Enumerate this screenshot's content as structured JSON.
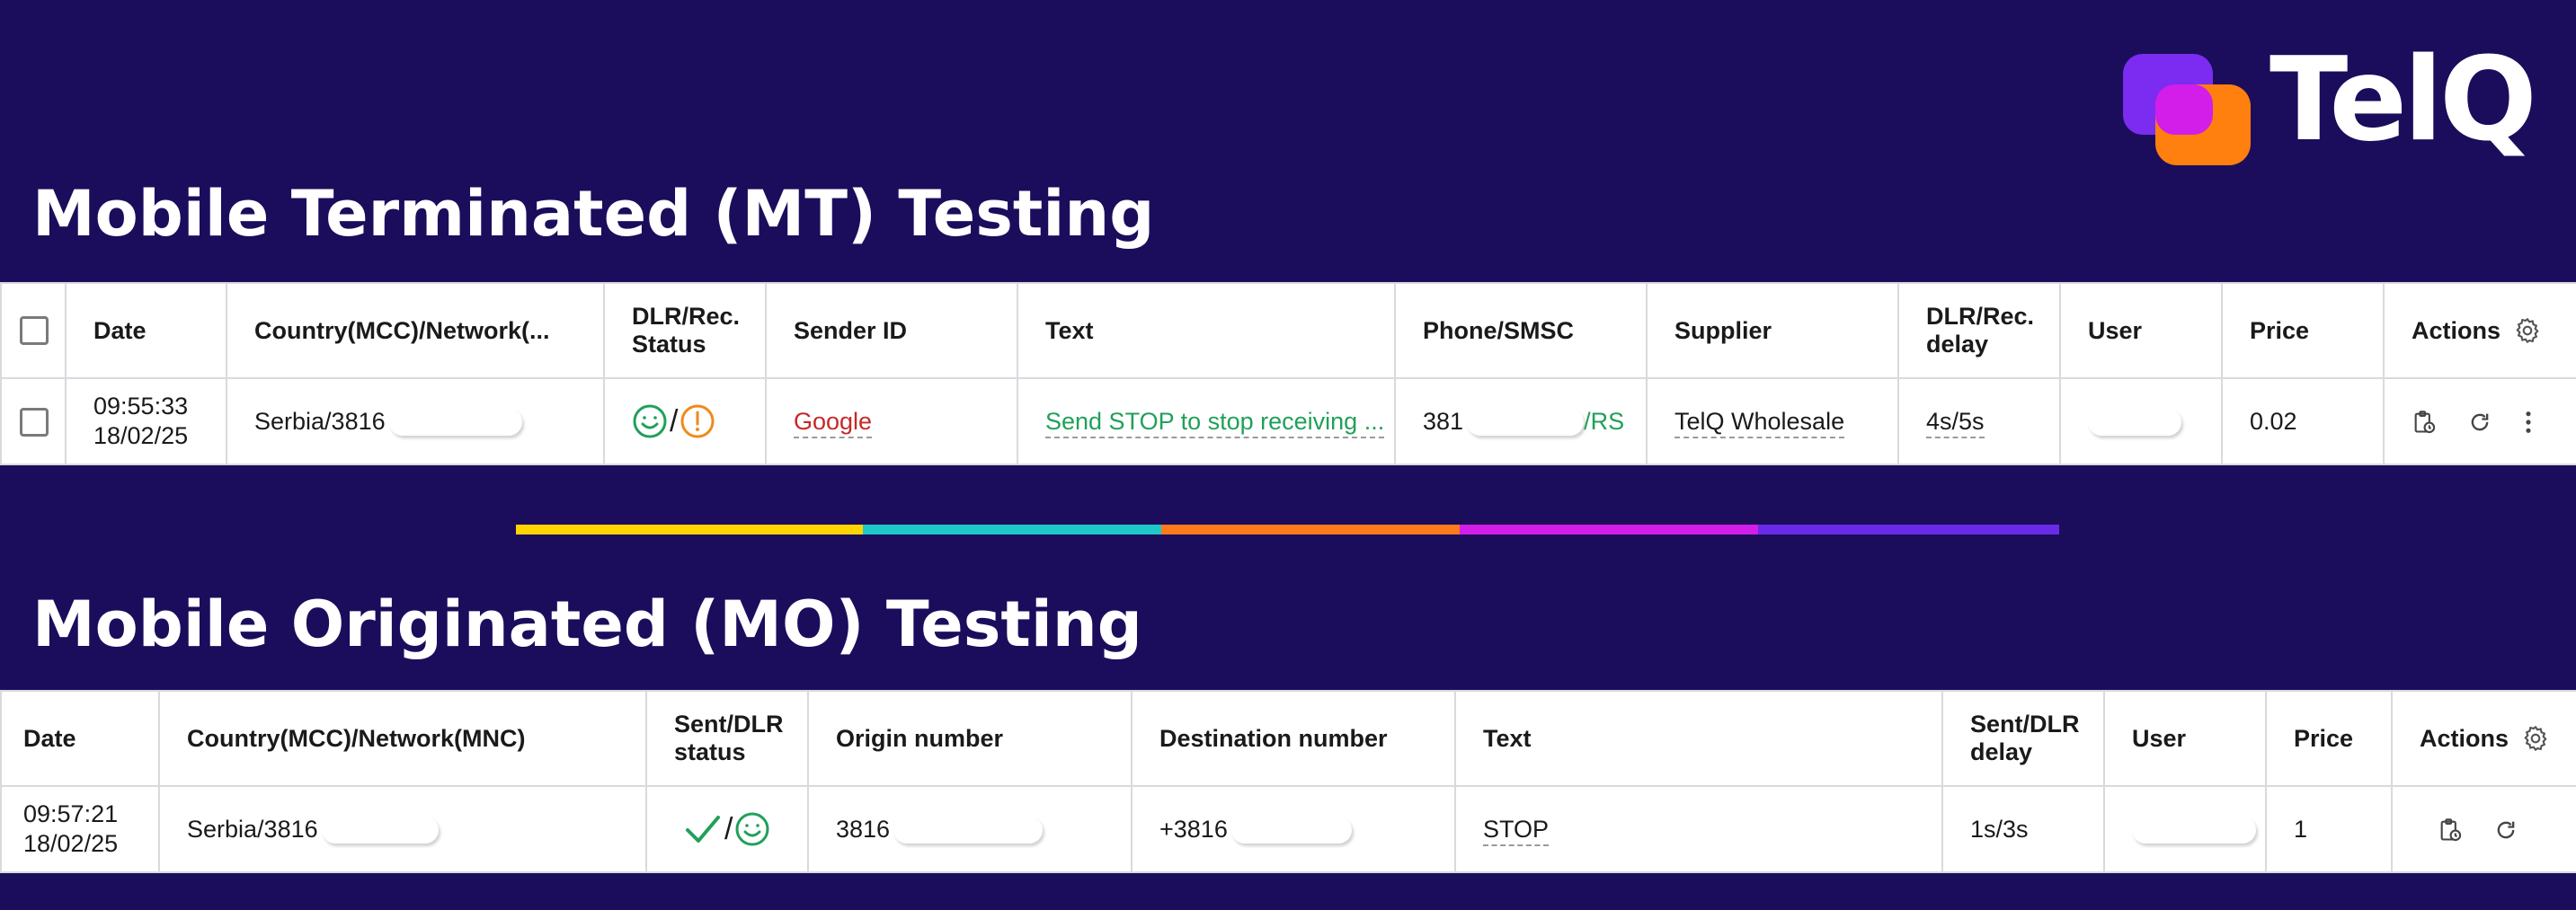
{
  "brand": {
    "name": "TelQ"
  },
  "colors": {
    "background": "#1b0d5c",
    "sender_red": "#c62828",
    "status_green": "#21a05a",
    "warning_orange": "#ef8a1a",
    "stripe": [
      "#ffd400",
      "#1ec8c8",
      "#ff7a1a",
      "#d21ee8",
      "#6a2be8"
    ]
  },
  "mt": {
    "title": "Mobile Terminated (MT) Testing",
    "headers": {
      "date": "Date",
      "country": "Country(MCC)/Network(...",
      "dlr_status_1": "DLR/Rec.",
      "dlr_status_2": "Status",
      "sender": "Sender ID",
      "text": "Text",
      "phone": "Phone/SMSC",
      "supplier": "Supplier",
      "delay_1": "DLR/Rec.",
      "delay_2": "delay",
      "user": "User",
      "price": "Price",
      "actions": "Actions"
    },
    "row": {
      "time": "09:55:33",
      "date": "18/02/25",
      "country": "Serbia/3816",
      "status_icons": [
        "smile-icon",
        "alert-icon"
      ],
      "status_sep": "/",
      "sender": "Google",
      "text": "Send STOP to stop receiving ...",
      "phone_prefix": "381",
      "phone_suffix": "/RS",
      "supplier": "TelQ Wholesale",
      "delay": "4s/5s",
      "price": "0.02"
    }
  },
  "mo": {
    "title": "Mobile Originated (MO) Testing",
    "headers": {
      "date": "Date",
      "country": "Country(MCC)/Network(MNC)",
      "status_1": "Sent/DLR",
      "status_2": "status",
      "origin": "Origin number",
      "destination": "Destination number",
      "text": "Text",
      "delay_1": "Sent/DLR",
      "delay_2": "delay",
      "user": "User",
      "price": "Price",
      "actions": "Actions"
    },
    "row": {
      "time": "09:57:21",
      "date": "18/02/25",
      "country": "Serbia/3816",
      "status_icons": [
        "check-icon",
        "smile-icon"
      ],
      "status_sep": "/",
      "origin_prefix": "3816",
      "destination_prefix": "+3816",
      "text": "STOP",
      "delay": "1s/3s",
      "price": "1"
    }
  }
}
